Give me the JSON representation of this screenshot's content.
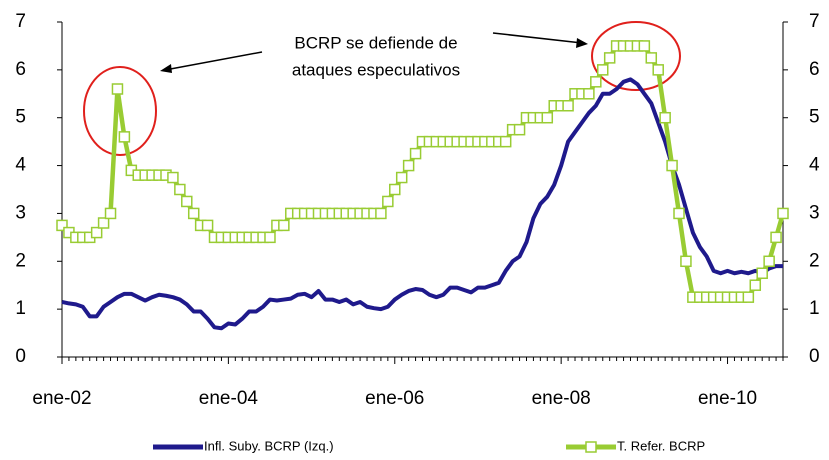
{
  "chart_data": {
    "type": "line",
    "annotation": [
      "BCRP se defiende de",
      "ataques especulativos"
    ],
    "categories": [
      "ene-02",
      null,
      null,
      null,
      null,
      null,
      null,
      null,
      null,
      null,
      null,
      null,
      null,
      null,
      null,
      null,
      null,
      null,
      null,
      null,
      null,
      null,
      null,
      null,
      "ene-04",
      null,
      null,
      null,
      null,
      null,
      null,
      null,
      null,
      null,
      null,
      null,
      null,
      null,
      null,
      null,
      null,
      null,
      null,
      null,
      null,
      null,
      null,
      null,
      "ene-06",
      null,
      null,
      null,
      null,
      null,
      null,
      null,
      null,
      null,
      null,
      null,
      null,
      null,
      null,
      null,
      null,
      null,
      null,
      null,
      null,
      null,
      null,
      null,
      "ene-08",
      null,
      null,
      null,
      null,
      null,
      null,
      null,
      null,
      null,
      null,
      null,
      null,
      null,
      null,
      null,
      null,
      null,
      null,
      null,
      null,
      null,
      null,
      null,
      "ene-10",
      null,
      null,
      null,
      null,
      null,
      null,
      null,
      null
    ],
    "series": [
      {
        "name": "Infl. Suby. BCRP (Izq.)",
        "color": "#1f1a8c",
        "axis": "y",
        "values": [
          1.15,
          1.12,
          1.1,
          1.05,
          0.85,
          0.85,
          1.05,
          1.15,
          1.25,
          1.32,
          1.32,
          1.25,
          1.18,
          1.25,
          1.3,
          1.28,
          1.25,
          1.2,
          1.1,
          0.95,
          0.95,
          0.8,
          0.62,
          0.6,
          0.7,
          0.68,
          0.8,
          0.95,
          0.95,
          1.05,
          1.2,
          1.18,
          1.2,
          1.22,
          1.3,
          1.32,
          1.25,
          1.38,
          1.2,
          1.2,
          1.15,
          1.2,
          1.1,
          1.15,
          1.05,
          1.02,
          1.0,
          1.05,
          1.2,
          1.3,
          1.38,
          1.42,
          1.4,
          1.3,
          1.25,
          1.3,
          1.45,
          1.45,
          1.4,
          1.35,
          1.45,
          1.45,
          1.5,
          1.55,
          1.8,
          2.0,
          2.1,
          2.4,
          2.9,
          3.2,
          3.35,
          3.6,
          4.0,
          4.5,
          4.7,
          4.9,
          5.1,
          5.25,
          5.5,
          5.5,
          5.6,
          5.75,
          5.8,
          5.7,
          5.5,
          5.3,
          4.9,
          4.5,
          4.0,
          3.6,
          3.1,
          2.6,
          2.3,
          2.1,
          1.8,
          1.75,
          1.8,
          1.75,
          1.78,
          1.75,
          1.8,
          1.75,
          1.85,
          1.9,
          1.9
        ]
      },
      {
        "name": "T. Refer. BCRP",
        "color": "#99cc33",
        "axis": "y2",
        "values": [
          2.75,
          2.6,
          2.5,
          2.5,
          2.5,
          2.6,
          2.8,
          3.0,
          5.6,
          4.6,
          3.9,
          3.8,
          3.8,
          3.8,
          3.8,
          3.8,
          3.75,
          3.5,
          3.25,
          3.0,
          2.75,
          2.75,
          2.5,
          2.5,
          2.5,
          2.5,
          2.5,
          2.5,
          2.5,
          2.5,
          2.5,
          2.75,
          2.75,
          3.0,
          3.0,
          3.0,
          3.0,
          3.0,
          3.0,
          3.0,
          3.0,
          3.0,
          3.0,
          3.0,
          3.0,
          3.0,
          3.0,
          3.25,
          3.5,
          3.75,
          4.0,
          4.25,
          4.5,
          4.5,
          4.5,
          4.5,
          4.5,
          4.5,
          4.5,
          4.5,
          4.5,
          4.5,
          4.5,
          4.5,
          4.5,
          4.75,
          4.75,
          5.0,
          5.0,
          5.0,
          5.0,
          5.25,
          5.25,
          5.25,
          5.5,
          5.5,
          5.5,
          5.75,
          6.0,
          6.25,
          6.5,
          6.5,
          6.5,
          6.5,
          6.5,
          6.25,
          6.0,
          5.0,
          4.0,
          3.0,
          2.0,
          1.25,
          1.25,
          1.25,
          1.25,
          1.25,
          1.25,
          1.25,
          1.25,
          1.25,
          1.5,
          1.75,
          2.0,
          2.5,
          3.0
        ]
      }
    ],
    "ylim": [
      0,
      7
    ],
    "yticks": [
      0,
      1,
      2,
      3,
      4,
      5,
      6,
      7
    ],
    "y2lim": [
      0,
      7
    ],
    "y2ticks": [
      0,
      1,
      2,
      3,
      4,
      5,
      6,
      7
    ],
    "grid": false,
    "legend": "bottom"
  }
}
